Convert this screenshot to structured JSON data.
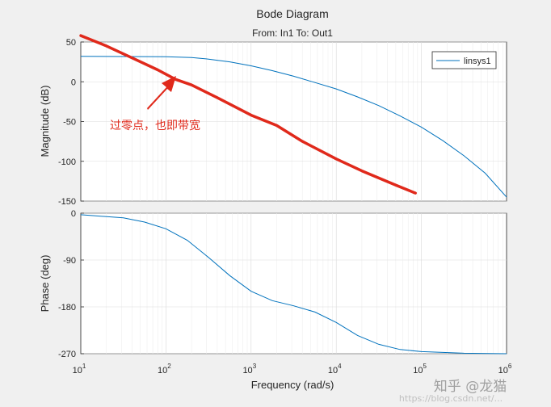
{
  "figure": {
    "title": "Bode Diagram",
    "subtitle": "From: In1  To: Out1",
    "xlabel": "Frequency  (rad/s)",
    "annotation": "过零点，也即带宽",
    "watermark_main": "知乎 @龙猫",
    "watermark_url": "https://blog.csdn.net/...",
    "colors": {
      "series": "#0072bd",
      "annotation": "#e0291b",
      "axes_bg": "#ffffff",
      "figure_bg": "#f0f0f0",
      "grid": "#dcdcdc"
    }
  },
  "chart_data": [
    {
      "type": "line",
      "title": "Bode Diagram",
      "ylabel": "Magnitude (dB)",
      "xscale": "log",
      "xlim": [
        10,
        1000000
      ],
      "ylim": [
        -150,
        50
      ],
      "yticks": [
        50,
        0,
        -50,
        -100,
        -150
      ],
      "grid": true,
      "legend": {
        "placement": "top-right",
        "entries": [
          "linsys1"
        ]
      },
      "series": [
        {
          "name": "linsys1",
          "x": [
            10,
            100,
            200,
            316,
            562,
            1000,
            1778,
            3162,
            5623,
            10000,
            17783,
            31623,
            56234,
            100000,
            177828,
            316228,
            562341,
            1000000
          ],
          "y": [
            32,
            31.5,
            30.5,
            28.5,
            25,
            20,
            14,
            7,
            -1,
            -9,
            -19,
            -30,
            -43,
            -57,
            -74,
            -93,
            -115,
            -145
          ]
        }
      ],
      "annotation_curve": {
        "x": [
          10,
          20,
          40,
          80,
          130,
          200,
          400,
          1000,
          2000,
          4000,
          10000,
          20000,
          50000,
          85000
        ],
        "y": [
          58,
          45,
          30,
          15,
          3,
          -4,
          -20,
          -42,
          -55,
          -75,
          -97,
          -112,
          -130,
          -140
        ]
      }
    },
    {
      "type": "line",
      "ylabel": "Phase (deg)",
      "xscale": "log",
      "xlim": [
        10,
        1000000
      ],
      "ylim": [
        -270,
        0
      ],
      "yticks": [
        0,
        -90,
        -180,
        -270
      ],
      "xticks": [
        "10^1",
        "10^2",
        "10^3",
        "10^4",
        "10^5",
        "10^6"
      ],
      "grid": true,
      "series": [
        {
          "name": "linsys1",
          "x": [
            10,
            31.6,
            56.2,
            100,
            178,
            316,
            562,
            1000,
            1778,
            3162,
            5623,
            10000,
            17783,
            31623,
            56234,
            100000,
            316228,
            1000000
          ],
          "y": [
            -3,
            -9,
            -17,
            -30,
            -52,
            -85,
            -120,
            -150,
            -168,
            -178,
            -190,
            -210,
            -235,
            -252,
            -262,
            -266,
            -269,
            -270
          ]
        }
      ]
    }
  ]
}
